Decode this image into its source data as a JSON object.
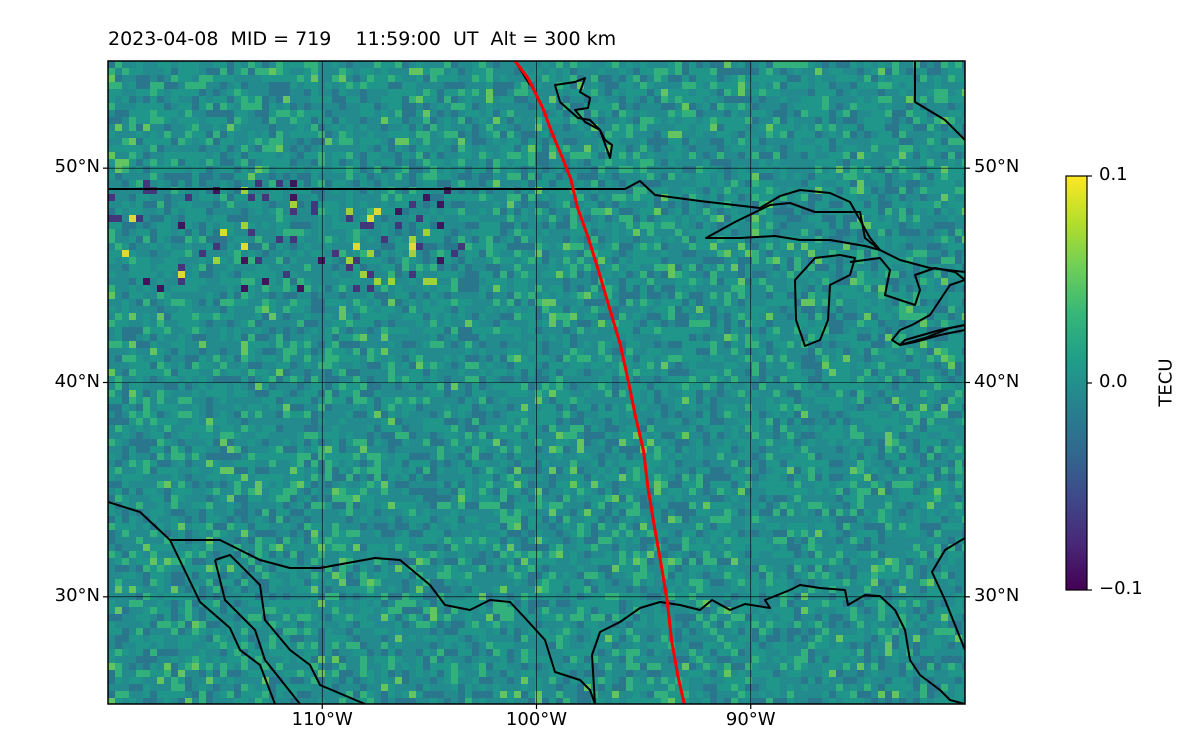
{
  "title": "2023-04-08  MID = 719    11:59:00  UT  Alt = 300 km",
  "map": {
    "lon_range": [
      -120,
      -80
    ],
    "lat_range": [
      25,
      55
    ],
    "background_color": "#238a8d",
    "grid_on": true,
    "lat_ticks": [
      {
        "value": 50,
        "label": "50°N"
      },
      {
        "value": 40,
        "label": "40°N"
      },
      {
        "value": 30,
        "label": "30°N"
      }
    ],
    "lon_ticks": [
      {
        "value": -110,
        "label": "110°W"
      },
      {
        "value": -100,
        "label": "100°W"
      },
      {
        "value": -90,
        "label": "90°W"
      }
    ],
    "path_color": "#ff0000",
    "path_lonlat": [
      [
        -101.0,
        55.0
      ],
      [
        -100.4,
        54.2
      ],
      [
        -99.7,
        52.8
      ],
      [
        -99.3,
        51.7
      ],
      [
        -98.8,
        50.5
      ],
      [
        -98.4,
        49.5
      ],
      [
        -98.1,
        48.2
      ],
      [
        -97.6,
        46.8
      ],
      [
        -97.1,
        45.2
      ],
      [
        -96.6,
        43.5
      ],
      [
        -96.1,
        41.8
      ],
      [
        -95.7,
        40.0
      ],
      [
        -95.4,
        38.5
      ],
      [
        -95.0,
        36.8
      ],
      [
        -94.8,
        35.1
      ],
      [
        -94.5,
        33.3
      ],
      [
        -94.2,
        31.6
      ],
      [
        -93.9,
        29.8
      ],
      [
        -93.7,
        28.0
      ],
      [
        -93.4,
        26.3
      ],
      [
        -93.1,
        25.0
      ]
    ]
  },
  "colorbar": {
    "label": "TECU",
    "min": -0.1,
    "max": 0.1,
    "ticks": [
      {
        "value": 0.1,
        "label": "0.1"
      },
      {
        "value": 0.0,
        "label": "0.0"
      },
      {
        "value": -0.1,
        "label": "−0.1"
      }
    ],
    "colors": [
      "#440154",
      "#482878",
      "#3e4989",
      "#31688e",
      "#26828e",
      "#1f9e89",
      "#35b779",
      "#6ece58",
      "#b5de2b",
      "#fde725"
    ]
  }
}
